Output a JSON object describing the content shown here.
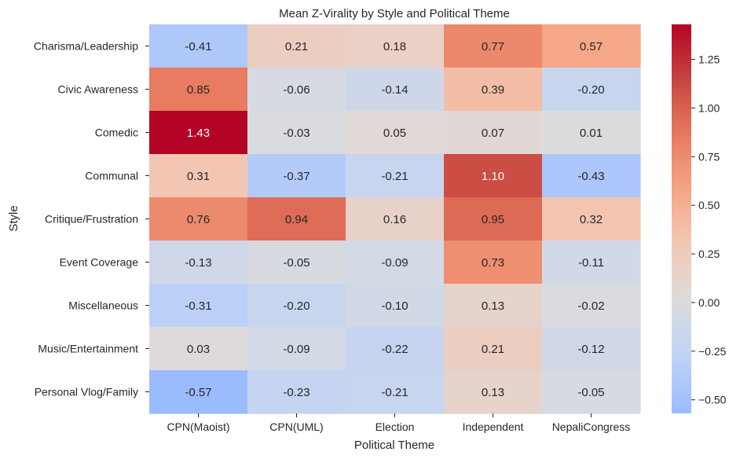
{
  "chart_data": {
    "type": "heatmap",
    "title": "Mean Z-Virality by Style and Political Theme",
    "xlabel": "Political Theme",
    "ylabel": "Style",
    "columns": [
      "CPN(Maoist)",
      "CPN(UML)",
      "Election",
      "Independent",
      "NepaliCongress"
    ],
    "rows": [
      "Charisma/Leadership",
      "Civic Awareness",
      "Comedic",
      "Communal",
      "Critique/Frustration",
      "Event Coverage",
      "Miscellaneous",
      "Music/Entertainment",
      "Personal Vlog/Family"
    ],
    "values": [
      [
        -0.41,
        0.21,
        0.18,
        0.77,
        0.57
      ],
      [
        0.85,
        -0.06,
        -0.14,
        0.39,
        -0.2
      ],
      [
        1.43,
        -0.03,
        0.05,
        0.07,
        0.01
      ],
      [
        0.31,
        -0.37,
        -0.21,
        1.1,
        -0.43
      ],
      [
        0.76,
        0.94,
        0.16,
        0.95,
        0.32
      ],
      [
        -0.13,
        -0.05,
        -0.09,
        0.73,
        -0.11
      ],
      [
        -0.31,
        -0.2,
        -0.1,
        0.13,
        -0.02
      ],
      [
        0.03,
        -0.09,
        -0.22,
        0.21,
        -0.12
      ],
      [
        -0.57,
        -0.23,
        -0.21,
        0.13,
        -0.05
      ]
    ],
    "colormap": "coolwarm",
    "center": 0,
    "colorbar": {
      "range": [
        -0.57,
        1.43
      ],
      "ticks": [
        -0.5,
        -0.25,
        0.0,
        0.25,
        0.5,
        0.75,
        1.0,
        1.25
      ],
      "tick_labels": [
        "−0.50",
        "−0.25",
        "0.00",
        "0.25",
        "0.50",
        "0.75",
        "1.00",
        "1.25"
      ]
    },
    "annotated": true,
    "grid": false,
    "legend": "colorbar-right"
  }
}
